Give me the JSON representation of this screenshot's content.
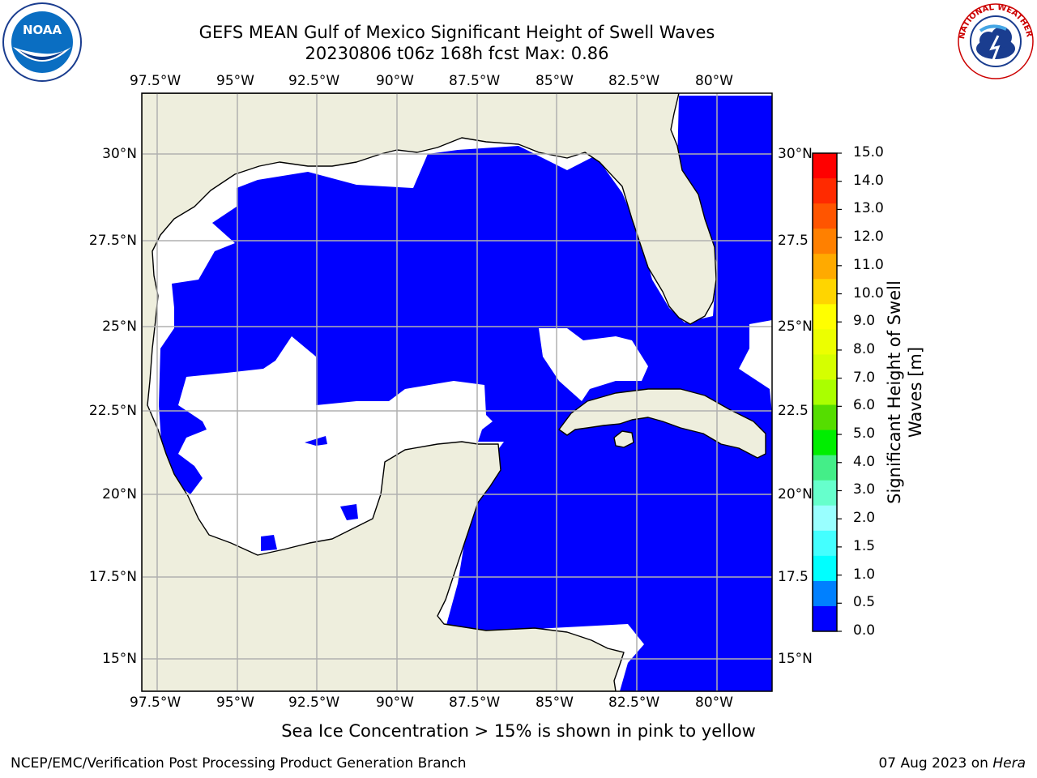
{
  "title": {
    "line1": "GEFS MEAN Gulf of Mexico Significant Height of Swell Waves",
    "line2": "20230806 t06z 168h fcst   Max: 0.86"
  },
  "map": {
    "lon_ticks": [
      "97.5°W",
      "95°W",
      "92.5°W",
      "90°W",
      "87.5°W",
      "85°W",
      "82.5°W",
      "80°W"
    ],
    "lat_ticks": [
      "30°N",
      "27.5°N",
      "25°N",
      "22.5°N",
      "20°N",
      "17.5°N",
      "15°N"
    ],
    "lat_ticks_right": [
      "30°N",
      "27.5",
      "25°N",
      "22.5",
      "20°N",
      "17.5",
      "15°N"
    ],
    "colors": {
      "land": "#eeeedd",
      "swell_0_0.5": "#0000ff",
      "swell_0.5_1.0": "#0080ff",
      "grid": "#b0b0b0"
    }
  },
  "colorbar": {
    "label_line1": "Significant Height of Swell",
    "label_line2": "Waves [m]",
    "ticks": [
      "15.0",
      "14.0",
      "13.0",
      "12.0",
      "11.0",
      "10.0",
      "9.0",
      "8.0",
      "7.0",
      "6.0",
      "5.0",
      "4.0",
      "3.0",
      "2.0",
      "1.5",
      "1.0",
      "0.5",
      "0.0"
    ],
    "colors_top_down": [
      "#ff0000",
      "#ff2a00",
      "#ff5500",
      "#ff8000",
      "#ffaa00",
      "#ffd500",
      "#ffff00",
      "#ecff00",
      "#d5ff00",
      "#aaff00",
      "#55dd00",
      "#00ee00",
      "#44ee88",
      "#66ffcc",
      "#99ffff",
      "#44ffff",
      "#00ffff",
      "#0080ff",
      "#0000ff"
    ]
  },
  "caption": "Sea Ice Concentration > 15% is shown in pink to yellow",
  "footer": {
    "credit": "NCEP/EMC/Verification Post Processing Product Generation Branch",
    "date_prefix": "07 Aug 2023 on ",
    "host": "Hera"
  },
  "logos": {
    "noaa_text": "NOAA",
    "nws_text": "NATIONAL WEATHER SERVICE"
  }
}
